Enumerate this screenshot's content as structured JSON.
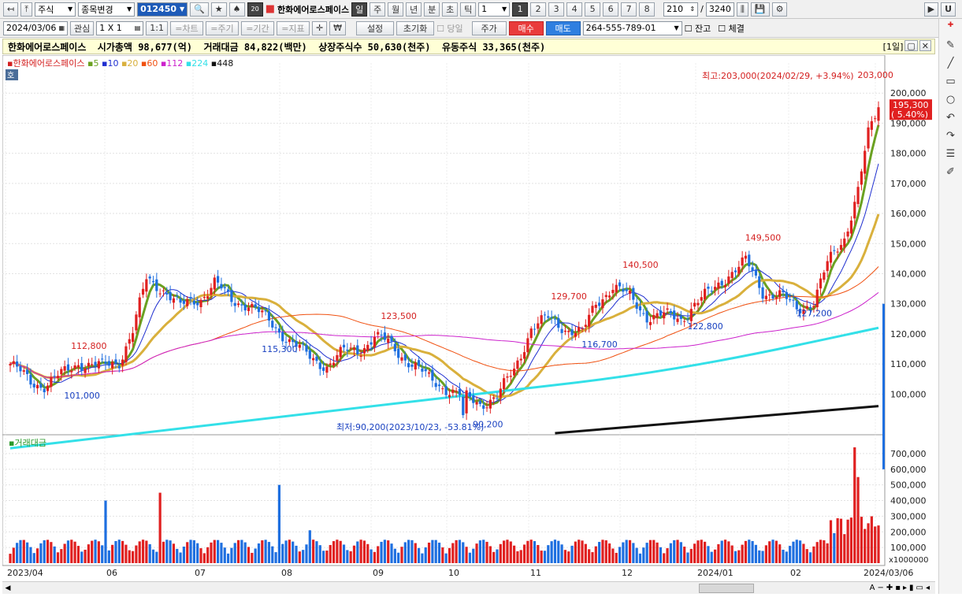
{
  "toolbar": {
    "market": "주식",
    "change_btn": "종목변경",
    "code": "012450",
    "stock_name": "한화에어로스페이스",
    "periods": [
      "일",
      "주",
      "월",
      "년",
      "분",
      "초",
      "틱"
    ],
    "period_num": "1",
    "chart_tabs": [
      "1",
      "2",
      "3",
      "4",
      "5",
      "6",
      "7",
      "8"
    ],
    "count": "210",
    "total": "3240",
    "right_u": "U"
  },
  "toolbar2": {
    "date": "2024/03/06",
    "watch": "관심",
    "grid": "1 X 1",
    "one": "1:1",
    "btns": [
      "=차트",
      "=주기",
      "=기간",
      "=지표"
    ],
    "setting": "설정",
    "reset": "초기화",
    "today": "당일",
    "price": "주가",
    "buy": "매수",
    "sell": "매도",
    "account": "264-555-789-01",
    "balance": "잔고",
    "filled": "체결"
  },
  "info": {
    "text": "한화에어로스페이스  시가총액 98,677(억)  거래대금 84,822(백만)  상장주식수 50,630(천주)  유동주식 33,365(천주)",
    "period": "[1일]"
  },
  "legend": {
    "name": "한화에어로스페이스",
    "mas": [
      {
        "label": "5",
        "color": "#6aa121"
      },
      {
        "label": "10",
        "color": "#1f2fd0"
      },
      {
        "label": "20",
        "color": "#d9b03c"
      },
      {
        "label": "60",
        "color": "#f05010"
      },
      {
        "label": "112",
        "color": "#cc22cc"
      },
      {
        "label": "224",
        "color": "#33e0e8"
      },
      {
        "label": "448",
        "color": "#111111"
      }
    ],
    "hoga": "호"
  },
  "annotations": {
    "high": "최고:203,000(2024/02/29, +3.94%)",
    "low": "최저:90,200(2023/10/23, -53.81%)",
    "current": "195,300",
    "change": "( 5.40%)",
    "peaks": [
      {
        "label": "112,800",
        "c": "red"
      },
      {
        "label": "101,000",
        "c": "blue"
      },
      {
        "label": "115,300",
        "c": "blue"
      },
      {
        "label": "123,500",
        "c": "red"
      },
      {
        "label": "90,200",
        "c": "blue"
      },
      {
        "label": "129,700",
        "c": "red"
      },
      {
        "label": "116,700",
        "c": "blue"
      },
      {
        "label": "140,500",
        "c": "red"
      },
      {
        "label": "122,800",
        "c": "blue"
      },
      {
        "label": "149,500",
        "c": "red"
      },
      {
        "label": "127,200",
        "c": "blue"
      },
      {
        "label": "203,000",
        "c": "red"
      }
    ]
  },
  "volume_title": "거래대금",
  "vol_unit": "x1000000",
  "colors": {
    "up": "#e02020",
    "down": "#1e6fe0"
  },
  "chart_data": {
    "type": "candlestick",
    "x_ticks": [
      "2023/04",
      "06",
      "07",
      "08",
      "09",
      "10",
      "11",
      "12",
      "2024/01",
      "02",
      "2024/03/06"
    ],
    "price_axis": [
      100000,
      110000,
      120000,
      130000,
      140000,
      150000,
      160000,
      170000,
      180000,
      190000,
      200000
    ],
    "price_axis_labels": [
      "100,000",
      "110,000",
      "120,000",
      "130,000",
      "140,000",
      "150,000",
      "160,000",
      "170,000",
      "180,000",
      "190,000",
      "200,000"
    ],
    "price_range": [
      87000,
      210000
    ],
    "volume_axis": [
      100000,
      200000,
      300000,
      400000,
      500000,
      600000,
      700000
    ],
    "volume_axis_labels": [
      "100,000",
      "200,000",
      "300,000",
      "400,000",
      "500,000",
      "600,000",
      "700,000"
    ],
    "volume_max": 780000,
    "high": 203000,
    "low": 90200,
    "last": 195300,
    "anchors": [
      [
        0,
        110000
      ],
      [
        6,
        104000
      ],
      [
        10,
        103000
      ],
      [
        16,
        107000
      ],
      [
        20,
        110500
      ],
      [
        27,
        109000
      ],
      [
        32,
        111000
      ],
      [
        36,
        121000
      ],
      [
        40,
        138000
      ],
      [
        45,
        135000
      ],
      [
        50,
        129000
      ],
      [
        56,
        132000
      ],
      [
        60,
        137000
      ],
      [
        65,
        131000
      ],
      [
        70,
        130000
      ],
      [
        76,
        124000
      ],
      [
        82,
        118000
      ],
      [
        88,
        112000
      ],
      [
        93,
        109500
      ],
      [
        98,
        114000
      ],
      [
        103,
        115000
      ],
      [
        107,
        119000
      ],
      [
        111,
        117000
      ],
      [
        117,
        111000
      ],
      [
        123,
        105000
      ],
      [
        128,
        102000
      ],
      [
        133,
        99000
      ],
      [
        138,
        97000
      ],
      [
        143,
        99000
      ],
      [
        148,
        108000
      ],
      [
        153,
        122000
      ],
      [
        158,
        125000
      ],
      [
        163,
        122000
      ],
      [
        168,
        120000
      ],
      [
        172,
        130000
      ],
      [
        177,
        136000
      ],
      [
        182,
        132000
      ],
      [
        187,
        126000
      ],
      [
        192,
        126000
      ],
      [
        197,
        125000
      ],
      [
        201,
        130000
      ],
      [
        206,
        134000
      ],
      [
        211,
        140000
      ],
      [
        216,
        144000
      ],
      [
        221,
        134000
      ],
      [
        226,
        133000
      ],
      [
        231,
        128000
      ],
      [
        236,
        131000
      ],
      [
        240,
        143000
      ],
      [
        245,
        152000
      ],
      [
        249,
        168000
      ],
      [
        252,
        186000
      ],
      [
        254,
        192000
      ],
      [
        255,
        195300
      ]
    ]
  }
}
